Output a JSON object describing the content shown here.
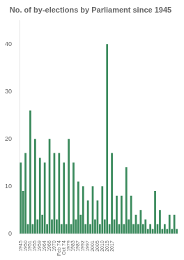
{
  "chart_data": {
    "type": "bar",
    "title": "No. of by-elections by Parliament since 1945",
    "categories": [
      "1945",
      null,
      "1950",
      null,
      "1951",
      null,
      "1955",
      null,
      "1959",
      null,
      "1964",
      null,
      "1966",
      null,
      "1970",
      null,
      "Feb\n74",
      null,
      "Oct\n74",
      null,
      "1979",
      null,
      "1983",
      null,
      "1987",
      null,
      "1992",
      null,
      "1997",
      null,
      "2001",
      null,
      "2005",
      null,
      "2010",
      null,
      "2015",
      null,
      "2017",
      null,
      null,
      null,
      null,
      null,
      null,
      null,
      null,
      null,
      null,
      null,
      null,
      null,
      null,
      null,
      null,
      null,
      null,
      null,
      null,
      null,
      null,
      null,
      null,
      null,
      null,
      null
    ],
    "values": [
      15,
      9,
      17,
      2,
      26,
      2,
      20,
      3,
      16,
      4,
      15,
      2,
      20,
      3,
      17,
      3,
      17,
      2,
      15,
      2,
      20,
      2,
      15,
      3,
      11,
      4,
      10,
      2,
      7,
      2,
      10,
      3,
      7,
      2,
      10,
      3,
      40,
      2,
      17,
      3,
      8,
      2,
      8,
      2,
      14,
      3,
      8,
      2,
      4,
      2,
      5,
      2,
      3,
      1,
      2,
      1,
      9,
      2,
      5,
      1,
      2,
      1,
      4,
      1,
      4,
      1
    ],
    "color": "#3a8a5c",
    "ylim": [
      0,
      45
    ],
    "yticks": [
      0,
      10,
      20,
      30,
      40
    ],
    "grid": false
  }
}
